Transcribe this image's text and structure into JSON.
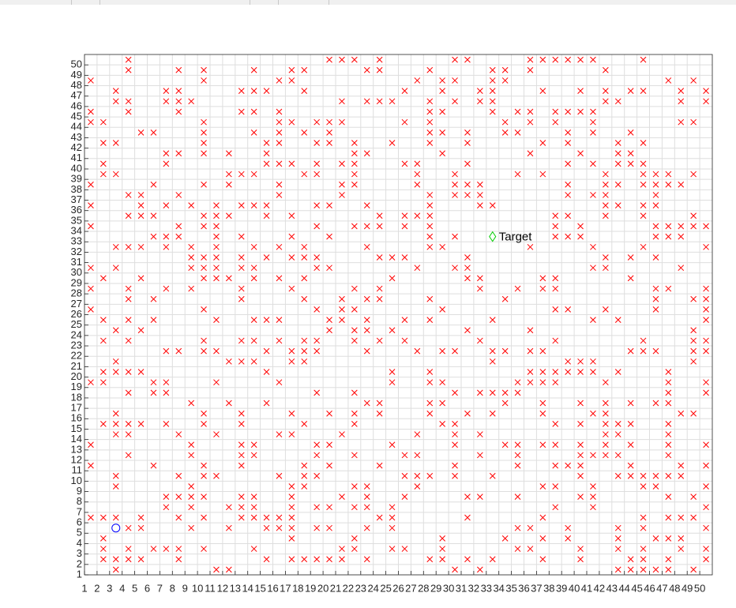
{
  "chart_data": {
    "type": "scatter",
    "xlim": [
      1,
      51
    ],
    "ylim": [
      1,
      51
    ],
    "xticks": [
      1,
      2,
      3,
      4,
      5,
      6,
      7,
      8,
      9,
      10,
      11,
      12,
      13,
      14,
      15,
      16,
      17,
      18,
      19,
      20,
      21,
      22,
      23,
      24,
      25,
      26,
      27,
      28,
      29,
      30,
      31,
      32,
      33,
      34,
      35,
      36,
      37,
      38,
      39,
      40,
      41,
      42,
      43,
      44,
      45,
      46,
      47,
      48,
      49,
      50
    ],
    "yticks": [
      1,
      2,
      3,
      4,
      5,
      6,
      7,
      8,
      9,
      10,
      11,
      12,
      13,
      14,
      15,
      16,
      17,
      18,
      19,
      20,
      21,
      22,
      23,
      24,
      25,
      26,
      27,
      28,
      29,
      30,
      31,
      32,
      33,
      34,
      35,
      36,
      37,
      38,
      39,
      40,
      41,
      42,
      43,
      44,
      45,
      46,
      47,
      48,
      49,
      50
    ],
    "grid": true,
    "obstacle_color": "#ff0000",
    "obstacles": [
      {
        "y": 50.5,
        "x": [
          4.5,
          20.5,
          21.5,
          22.5,
          24.5,
          30.5,
          31.5,
          36.5,
          37.5,
          38.5,
          39.5,
          40.5,
          41.5,
          45.5
        ]
      },
      {
        "y": 49.5,
        "x": [
          4.5,
          8.5,
          10.5,
          14.5,
          17.5,
          18.5,
          23.5,
          24.5,
          28.5,
          33.5,
          34.5,
          36.5,
          42.5
        ]
      },
      {
        "y": 48.5,
        "x": [
          1.5,
          10.5,
          16.5,
          17.5,
          27.5,
          29.5,
          30.5,
          33.5,
          34.5,
          47.5,
          49.5
        ]
      },
      {
        "y": 47.5,
        "x": [
          3.5,
          7.5,
          8.5,
          13.5,
          14.5,
          15.5,
          18.5,
          26.5,
          29.5,
          32.5,
          33.5,
          37.5,
          40.5,
          42.5,
          44.5,
          45.5,
          48.5,
          50.5
        ]
      },
      {
        "y": 46.5,
        "x": [
          3.5,
          4.5,
          7.5,
          8.5,
          9.5,
          21.5,
          23.5,
          24.5,
          25.5,
          28.5,
          30.5,
          32.5,
          33.5,
          42.5,
          43.5,
          48.5,
          50.5
        ]
      },
      {
        "y": 45.5,
        "x": [
          1.5,
          4.5,
          8.5,
          13.5,
          14.5,
          16.5,
          28.5,
          29.5,
          33.5,
          35.5,
          36.5,
          38.5,
          39.5,
          40.5,
          41.5
        ]
      },
      {
        "y": 44.5,
        "x": [
          1.5,
          2.5,
          10.5,
          16.5,
          17.5,
          19.5,
          20.5,
          21.5,
          26.5,
          28.5,
          34.5,
          36.5,
          38.5,
          41.5,
          48.5,
          49.5
        ]
      },
      {
        "y": 43.5,
        "x": [
          5.5,
          6.5,
          10.5,
          14.5,
          16.5,
          18.5,
          20.5,
          28.5,
          29.5,
          31.5,
          34.5,
          35.5,
          39.5,
          41.5,
          44.5
        ]
      },
      {
        "y": 42.5,
        "x": [
          2.5,
          3.5,
          10.5,
          15.5,
          16.5,
          19.5,
          20.5,
          22.5,
          25.5,
          28.5,
          31.5,
          37.5,
          39.5,
          43.5,
          45.5
        ]
      },
      {
        "y": 41.5,
        "x": [
          7.5,
          8.5,
          10.5,
          12.5,
          15.5,
          22.5,
          23.5,
          29.5,
          36.5,
          40.5,
          43.5,
          44.5
        ]
      },
      {
        "y": 40.5,
        "x": [
          2.5,
          7.5,
          15.5,
          16.5,
          17.5,
          19.5,
          21.5,
          22.5,
          26.5,
          27.5,
          31.5,
          39.5,
          41.5,
          43.5,
          44.5,
          45.5
        ]
      },
      {
        "y": 39.5,
        "x": [
          2.5,
          3.5,
          12.5,
          13.5,
          14.5,
          18.5,
          19.5,
          22.5,
          27.5,
          30.5,
          35.5,
          37.5,
          42.5,
          45.5,
          46.5,
          47.5,
          49.5
        ]
      },
      {
        "y": 38.5,
        "x": [
          1.5,
          6.5,
          10.5,
          12.5,
          16.5,
          21.5,
          22.5,
          27.5,
          30.5,
          31.5,
          32.5,
          39.5,
          42.5,
          43.5,
          45.5,
          46.5,
          47.5,
          48.5
        ]
      },
      {
        "y": 37.5,
        "x": [
          4.5,
          5.5,
          8.5,
          16.5,
          21.5,
          28.5,
          30.5,
          31.5,
          32.5,
          39.5,
          41.5,
          42.5,
          46.5
        ]
      },
      {
        "y": 36.5,
        "x": [
          1.5,
          5.5,
          7.5,
          9.5,
          11.5,
          13.5,
          14.5,
          15.5,
          19.5,
          20.5,
          23.5,
          28.5,
          32.5,
          33.5,
          42.5,
          43.5,
          45.5,
          46.5
        ]
      },
      {
        "y": 35.5,
        "x": [
          4.5,
          5.5,
          6.5,
          10.5,
          11.5,
          12.5,
          15.5,
          17.5,
          24.5,
          26.5,
          27.5,
          28.5,
          38.5,
          39.5,
          42.5,
          45.5,
          49.5
        ]
      },
      {
        "y": 34.5,
        "x": [
          1.5,
          8.5,
          10.5,
          11.5,
          19.5,
          22.5,
          23.5,
          24.5,
          26.5,
          28.5,
          38.5,
          40.5,
          46.5,
          47.5,
          48.5,
          49.5,
          50.5
        ]
      },
      {
        "y": 33.5,
        "x": [
          6.5,
          7.5,
          8.5,
          11.5,
          13.5,
          17.5,
          20.5,
          28.5,
          30.5,
          38.5,
          39.5,
          40.5,
          46.5,
          47.5,
          48.5
        ]
      },
      {
        "y": 32.5,
        "x": [
          3.5,
          4.5,
          5.5,
          7.5,
          9.5,
          11.5,
          14.5,
          16.5,
          18.5,
          23.5,
          28.5,
          29.5,
          36.5,
          41.5,
          45.5,
          50.5
        ]
      },
      {
        "y": 31.5,
        "x": [
          9.5,
          10.5,
          11.5,
          13.5,
          15.5,
          17.5,
          18.5,
          19.5,
          24.5,
          25.5,
          26.5,
          31.5,
          42.5,
          44.5,
          46.5
        ]
      },
      {
        "y": 30.5,
        "x": [
          1.5,
          3.5,
          9.5,
          10.5,
          11.5,
          13.5,
          14.5,
          19.5,
          20.5,
          27.5,
          30.5,
          31.5,
          41.5,
          42.5,
          48.5
        ]
      },
      {
        "y": 29.5,
        "x": [
          2.5,
          5.5,
          10.5,
          11.5,
          12.5,
          14.5,
          16.5,
          18.5,
          25.5,
          31.5,
          32.5,
          37.5,
          38.5,
          44.5
        ]
      },
      {
        "y": 28.5,
        "x": [
          1.5,
          4.5,
          7.5,
          9.5,
          13.5,
          17.5,
          22.5,
          24.5,
          32.5,
          35.5,
          37.5,
          38.5,
          46.5,
          47.5,
          50.5
        ]
      },
      {
        "y": 27.5,
        "x": [
          4.5,
          6.5,
          13.5,
          18.5,
          21.5,
          23.5,
          24.5,
          28.5,
          34.5,
          46.5,
          49.5,
          50.5
        ]
      },
      {
        "y": 26.5,
        "x": [
          1.5,
          10.5,
          19.5,
          21.5,
          22.5,
          29.5,
          38.5,
          39.5,
          42.5,
          46.5,
          50.5
        ]
      },
      {
        "y": 25.5,
        "x": [
          2.5,
          4.5,
          6.5,
          11.5,
          14.5,
          15.5,
          16.5,
          20.5,
          21.5,
          23.5,
          26.5,
          28.5,
          33.5,
          41.5,
          43.5,
          50.5
        ]
      },
      {
        "y": 24.5,
        "x": [
          3.5,
          5.5,
          20.5,
          22.5,
          23.5,
          25.5,
          31.5,
          36.5,
          49.5
        ]
      },
      {
        "y": 23.5,
        "x": [
          2.5,
          4.5,
          10.5,
          13.5,
          14.5,
          16.5,
          18.5,
          19.5,
          22.5,
          24.5,
          26.5,
          32.5,
          38.5,
          45.5,
          49.5,
          50.5
        ]
      },
      {
        "y": 22.5,
        "x": [
          7.5,
          8.5,
          10.5,
          11.5,
          15.5,
          17.5,
          18.5,
          19.5,
          23.5,
          27.5,
          29.5,
          30.5,
          33.5,
          34.5,
          36.5,
          37.5,
          44.5,
          45.5,
          46.5,
          49.5,
          50.5
        ]
      },
      {
        "y": 21.5,
        "x": [
          3.5,
          12.5,
          13.5,
          14.5,
          17.5,
          18.5,
          33.5,
          39.5,
          40.5,
          41.5,
          49.5
        ]
      },
      {
        "y": 20.5,
        "x": [
          2.5,
          3.5,
          4.5,
          5.5,
          15.5,
          25.5,
          28.5,
          36.5,
          37.5,
          38.5,
          39.5,
          40.5,
          41.5,
          43.5,
          47.5
        ]
      },
      {
        "y": 19.5,
        "x": [
          1.5,
          2.5,
          6.5,
          7.5,
          11.5,
          16.5,
          25.5,
          28.5,
          29.5,
          35.5,
          36.5,
          37.5,
          38.5,
          42.5,
          47.5,
          50.5
        ]
      },
      {
        "y": 18.5,
        "x": [
          4.5,
          6.5,
          7.5,
          19.5,
          22.5,
          30.5,
          32.5,
          33.5,
          34.5,
          35.5,
          47.5,
          50.5
        ]
      },
      {
        "y": 17.5,
        "x": [
          9.5,
          12.5,
          15.5,
          23.5,
          24.5,
          28.5,
          29.5,
          34.5,
          37.5,
          40.5,
          42.5,
          44.5,
          46.5,
          47.5
        ]
      },
      {
        "y": 16.5,
        "x": [
          3.5,
          10.5,
          13.5,
          17.5,
          20.5,
          22.5,
          24.5,
          28.5,
          31.5,
          33.5,
          37.5,
          41.5,
          42.5,
          48.5,
          49.5
        ]
      },
      {
        "y": 15.5,
        "x": [
          2.5,
          3.5,
          4.5,
          5.5,
          7.5,
          10.5,
          13.5,
          18.5,
          22.5,
          29.5,
          30.5,
          38.5,
          40.5,
          42.5,
          43.5,
          44.5,
          47.5
        ]
      },
      {
        "y": 14.5,
        "x": [
          3.5,
          4.5,
          8.5,
          11.5,
          16.5,
          17.5,
          21.5,
          27.5,
          30.5,
          32.5,
          42.5,
          43.5,
          47.5
        ]
      },
      {
        "y": 13.5,
        "x": [
          1.5,
          9.5,
          13.5,
          14.5,
          19.5,
          20.5,
          25.5,
          30.5,
          34.5,
          35.5,
          37.5,
          38.5,
          40.5,
          42.5,
          44.5,
          47.5,
          50.5
        ]
      },
      {
        "y": 12.5,
        "x": [
          4.5,
          9.5,
          13.5,
          14.5,
          19.5,
          22.5,
          26.5,
          27.5,
          32.5,
          35.5,
          40.5,
          41.5,
          42.5,
          43.5,
          47.5
        ]
      },
      {
        "y": 11.5,
        "x": [
          1.5,
          6.5,
          10.5,
          13.5,
          18.5,
          20.5,
          24.5,
          30.5,
          35.5,
          38.5,
          39.5,
          40.5,
          44.5,
          48.5,
          50.5
        ]
      },
      {
        "y": 10.5,
        "x": [
          3.5,
          8.5,
          10.5,
          11.5,
          16.5,
          18.5,
          19.5,
          26.5,
          27.5,
          28.5,
          30.5,
          33.5,
          40.5,
          43.5,
          44.5,
          45.5,
          46.5,
          47.5,
          48.5
        ]
      },
      {
        "y": 9.5,
        "x": [
          3.5,
          9.5,
          17.5,
          18.5,
          22.5,
          23.5,
          27.5,
          37.5,
          38.5,
          41.5,
          45.5,
          46.5,
          50.5
        ]
      },
      {
        "y": 8.5,
        "x": [
          7.5,
          8.5,
          9.5,
          10.5,
          13.5,
          14.5,
          17.5,
          21.5,
          23.5,
          26.5,
          31.5,
          32.5,
          35.5,
          40.5,
          41.5,
          47.5,
          49.5
        ]
      },
      {
        "y": 7.5,
        "x": [
          7.5,
          9.5,
          12.5,
          13.5,
          14.5,
          17.5,
          19.5,
          20.5,
          22.5,
          23.5,
          25.5,
          38.5,
          41.5,
          50.5
        ]
      },
      {
        "y": 6.5,
        "x": [
          1.5,
          2.5,
          3.5,
          5.5,
          8.5,
          10.5,
          13.5,
          14.5,
          15.5,
          16.5,
          17.5,
          24.5,
          25.5,
          31.5,
          37.5,
          45.5,
          47.5,
          48.5,
          49.5
        ]
      },
      {
        "y": 5.5,
        "x": [
          4.5,
          5.5,
          9.5,
          12.5,
          15.5,
          16.5,
          17.5,
          19.5,
          20.5,
          23.5,
          25.5,
          35.5,
          36.5,
          39.5,
          43.5,
          45.5,
          50.5
        ]
      },
      {
        "y": 4.5,
        "x": [
          2.5,
          17.5,
          22.5,
          29.5,
          34.5,
          37.5,
          39.5,
          43.5,
          46.5,
          47.5,
          48.5
        ]
      },
      {
        "y": 3.5,
        "x": [
          2.5,
          4.5,
          6.5,
          7.5,
          8.5,
          10.5,
          14.5,
          21.5,
          22.5,
          25.5,
          26.5,
          29.5,
          35.5,
          36.5,
          40.5,
          43.5,
          45.5,
          48.5,
          50.5
        ]
      },
      {
        "y": 2.5,
        "x": [
          2.5,
          3.5,
          4.5,
          5.5,
          8.5,
          15.5,
          17.5,
          18.5,
          19.5,
          20.5,
          21.5,
          23.5,
          28.5,
          29.5,
          31.5,
          33.5,
          37.5,
          40.5,
          44.5,
          45.5,
          47.5,
          50.5
        ]
      },
      {
        "y": 1.5,
        "x": [
          3.5,
          11.5,
          12.5,
          30.5,
          32.5,
          43.5,
          44.5,
          45.5,
          46.5,
          47.5,
          49.5
        ]
      }
    ],
    "start": {
      "x": 3.5,
      "y": 5.5,
      "color": "#0000ff"
    },
    "target": {
      "x": 33.5,
      "y": 33.5,
      "label": "Target",
      "color": "#00cc00"
    }
  }
}
